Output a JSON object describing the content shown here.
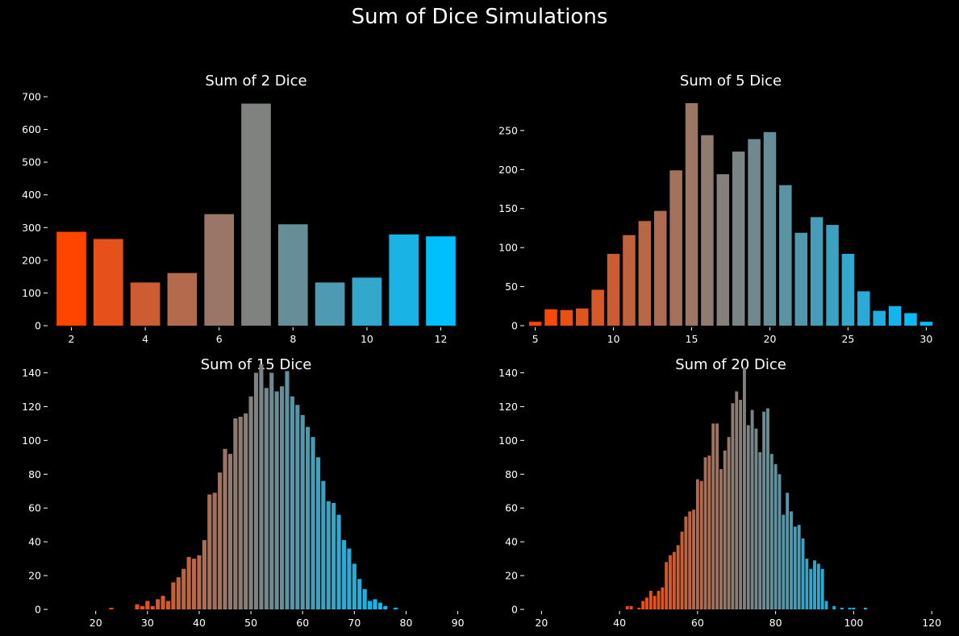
{
  "figure_title": "Sum of Dice Simulations",
  "colors": {
    "start": "#ff4500",
    "end": "#00bfff",
    "background": "#000000"
  },
  "chart_data": [
    {
      "type": "bar",
      "title": "Sum of 2 Dice",
      "x": [
        2,
        3,
        4,
        5,
        6,
        7,
        8,
        9,
        10,
        11,
        12
      ],
      "values": [
        287,
        265,
        132,
        161,
        341,
        679,
        310,
        132,
        147,
        279,
        273
      ],
      "xlim": [
        1.4,
        12.6
      ],
      "ylim": [
        0,
        700
      ],
      "xticks": [
        2,
        4,
        6,
        8,
        10,
        12
      ],
      "yticks": [
        0,
        100,
        200,
        300,
        400,
        500,
        600,
        700
      ],
      "grid": false
    },
    {
      "type": "bar",
      "title": "Sum of 5 Dice",
      "x": [
        5,
        6,
        7,
        8,
        9,
        10,
        11,
        12,
        13,
        14,
        15,
        16,
        17,
        18,
        19,
        20,
        21,
        22,
        23,
        24,
        25,
        26,
        27,
        28,
        29,
        30
      ],
      "values": [
        5,
        21,
        20,
        22,
        46,
        92,
        116,
        134,
        147,
        199,
        285,
        244,
        194,
        223,
        239,
        248,
        180,
        119,
        139,
        129,
        92,
        44,
        19,
        25,
        16,
        5
      ],
      "xlim": [
        4.4,
        30.6
      ],
      "ylim": [
        0,
        285
      ],
      "xticks": [
        5,
        10,
        15,
        20,
        25,
        30
      ],
      "yticks": [
        0,
        50,
        100,
        150,
        200,
        250
      ],
      "grid": false
    },
    {
      "type": "bar",
      "title": "Sum of 15 Dice",
      "x": [
        23,
        28,
        29,
        30,
        31,
        32,
        33,
        34,
        35,
        36,
        37,
        38,
        39,
        40,
        41,
        42,
        43,
        44,
        45,
        46,
        47,
        48,
        49,
        50,
        51,
        52,
        53,
        54,
        55,
        56,
        57,
        58,
        59,
        60,
        61,
        62,
        63,
        64,
        65,
        66,
        67,
        68,
        69,
        70,
        71,
        72,
        73,
        74,
        75,
        76,
        78
      ],
      "values": [
        1,
        3,
        2,
        5,
        2,
        6,
        8,
        5,
        16,
        19,
        24,
        31,
        30,
        32,
        41,
        68,
        69,
        81,
        95,
        92,
        113,
        114,
        116,
        126,
        140,
        145,
        131,
        140,
        129,
        132,
        141,
        126,
        121,
        115,
        108,
        102,
        90,
        76,
        64,
        63,
        56,
        41,
        36,
        27,
        18,
        12,
        5,
        6,
        4,
        2,
        1
      ],
      "xlim": [
        11,
        91
      ],
      "ylim": [
        0,
        145
      ],
      "xticks": [
        20,
        30,
        40,
        50,
        60,
        70,
        80,
        90
      ],
      "yticks": [
        0,
        20,
        40,
        60,
        80,
        100,
        120,
        140
      ],
      "grid": false
    },
    {
      "type": "bar",
      "title": "Sum of 20 Dice",
      "x": [
        42,
        43,
        45,
        46,
        47,
        48,
        49,
        50,
        51,
        52,
        53,
        54,
        55,
        56,
        57,
        58,
        59,
        60,
        61,
        62,
        63,
        64,
        65,
        66,
        67,
        68,
        69,
        70,
        71,
        72,
        73,
        74,
        75,
        76,
        77,
        78,
        79,
        80,
        81,
        82,
        83,
        84,
        85,
        86,
        87,
        88,
        89,
        90,
        91,
        92,
        93,
        95,
        97,
        99,
        100,
        103
      ],
      "values": [
        2,
        2,
        1,
        5,
        7,
        11,
        8,
        11,
        13,
        28,
        32,
        34,
        38,
        46,
        55,
        58,
        59,
        77,
        76,
        90,
        91,
        110,
        110,
        83,
        94,
        102,
        122,
        129,
        124,
        143,
        109,
        118,
        107,
        93,
        117,
        119,
        92,
        86,
        80,
        56,
        69,
        58,
        49,
        50,
        42,
        30,
        24,
        29,
        27,
        24,
        5,
        2,
        1,
        1,
        1,
        1
      ],
      "xlim": [
        16,
        121
      ],
      "ylim": [
        0,
        145
      ],
      "xticks": [
        20,
        40,
        60,
        80,
        100,
        120
      ],
      "yticks": [
        0,
        20,
        40,
        60,
        80,
        100,
        120,
        140
      ],
      "grid": false
    }
  ]
}
